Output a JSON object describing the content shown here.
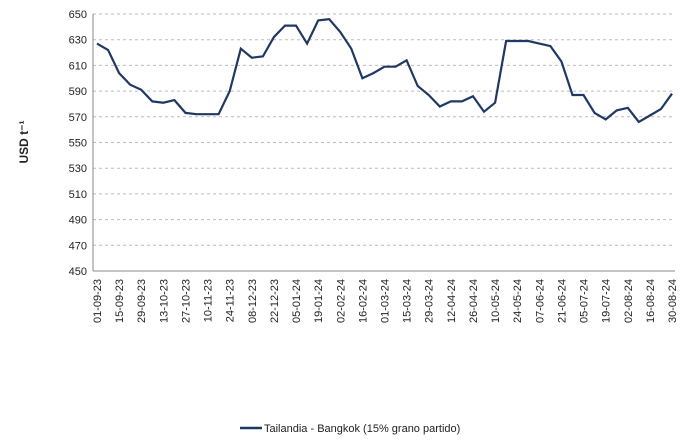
{
  "chart_data": {
    "type": "line",
    "y_label": "USD t⁻¹",
    "categories": [
      "01-09-23",
      null,
      "15-09-23",
      null,
      "29-09-23",
      null,
      "13-10-23",
      null,
      "27-10-23",
      null,
      "10-11-23",
      null,
      "24-11-23",
      null,
      "08-12-23",
      null,
      "22-12-23",
      null,
      "05-01-24",
      null,
      "19-01-24",
      null,
      "02-02-24",
      null,
      "16-02-24",
      null,
      "01-03-24",
      null,
      "15-03-24",
      null,
      "29-03-24",
      null,
      "12-04-24",
      null,
      "26-04-24",
      null,
      "10-05-24",
      null,
      "24-05-24",
      null,
      "07-06-24",
      null,
      "21-06-24",
      null,
      "05-07-24",
      null,
      "19-07-24",
      null,
      "02-08-24",
      null,
      "16-08-24",
      null,
      "30-08-24"
    ],
    "series": [
      {
        "name": "Tailandia - Bangkok (15% grano partido)",
        "color": "#1f3864",
        "values": [
          627,
          622,
          604,
          595,
          591,
          582,
          581,
          583,
          573,
          572,
          572,
          572,
          590,
          623,
          616,
          617,
          632,
          641,
          641,
          627,
          645,
          646,
          636,
          623,
          600,
          604,
          609,
          609,
          614,
          594,
          587,
          578,
          582,
          582,
          586,
          574,
          581,
          629,
          629,
          629,
          627,
          625,
          613,
          587,
          587,
          573,
          568,
          575,
          577,
          566,
          571,
          576,
          588
        ]
      }
    ],
    "ylim": [
      450,
      650
    ],
    "yticks": [
      450,
      470,
      490,
      510,
      530,
      550,
      570,
      590,
      610,
      630,
      650
    ],
    "grid": true,
    "legend": "bottom"
  }
}
